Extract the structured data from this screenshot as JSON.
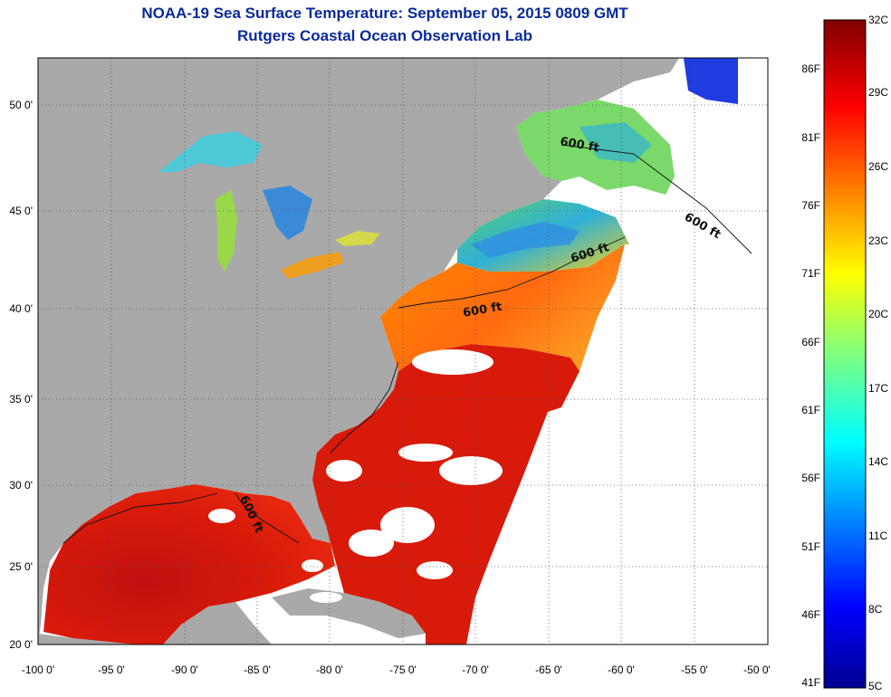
{
  "title": "NOAA-19 Sea Surface Temperature:  September 05, 2015 0809 GMT",
  "subtitle": "Rutgers Coastal Ocean Observation Lab",
  "lat_ticks": [
    "50 0'",
    "45 0'",
    "40 0'",
    "35 0'",
    "30 0'",
    "25 0'",
    "20 0'"
  ],
  "lon_ticks": [
    "-100 0'",
    "-95 0'",
    "-90 0'",
    "-85 0'",
    "-80 0'",
    "-75 0'",
    "-70 0'",
    "-65 0'",
    "-60 0'",
    "-55 0'",
    "-50 0'"
  ],
  "contour_labels": [
    "600 ft",
    "600 ft",
    "600 ft",
    "600 ft",
    "600 ft"
  ],
  "colorbar": {
    "fahrenheit": [
      "86F",
      "81F",
      "76F",
      "71F",
      "66F",
      "61F",
      "56F",
      "51F",
      "46F",
      "41F"
    ],
    "celsius": [
      "32C",
      "29C",
      "26C",
      "23C",
      "20C",
      "17C",
      "14C",
      "11C",
      "8C",
      "5C"
    ]
  },
  "colors": {
    "land": "#a9a9a9",
    "nodata": "#ffffff",
    "warm": "#d81a0a",
    "hot": "#b00808",
    "mid": "#ff8c00",
    "cool": "#28c8c0",
    "cold": "#1c3cd8",
    "title": "#0a2a9a"
  }
}
